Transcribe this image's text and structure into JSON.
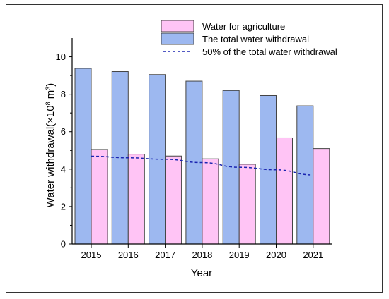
{
  "chart_data": {
    "type": "bar",
    "categories": [
      "2015",
      "2016",
      "2017",
      "2018",
      "2019",
      "2020",
      "2021"
    ],
    "series": [
      {
        "name": "The total water withdrawal",
        "values": [
          9.38,
          9.21,
          9.05,
          8.7,
          8.2,
          7.93,
          7.38
        ],
        "color": "#9db8f0"
      },
      {
        "name": "Water for agriculture",
        "values": [
          5.05,
          4.8,
          4.7,
          4.55,
          4.26,
          5.67,
          5.1
        ],
        "color": "#ffc4f5"
      }
    ],
    "line_series": {
      "name": "50% of the total water withdrawal",
      "values": [
        4.69,
        4.605,
        4.525,
        4.35,
        4.1,
        3.965,
        3.69
      ],
      "color": "#1a24b0",
      "style": "dashed"
    },
    "xlabel": "Year",
    "ylabel": "Water withdrawal(×10",
    "ylabel_sup": "8",
    "ylabel_unit": " m",
    "ylabel_sup2": "3",
    "ylabel_end": ")",
    "ylim": [
      0,
      11
    ],
    "yticks": [
      0,
      2,
      4,
      6,
      8,
      10
    ],
    "legend_position": "top-right",
    "grid": false
  }
}
